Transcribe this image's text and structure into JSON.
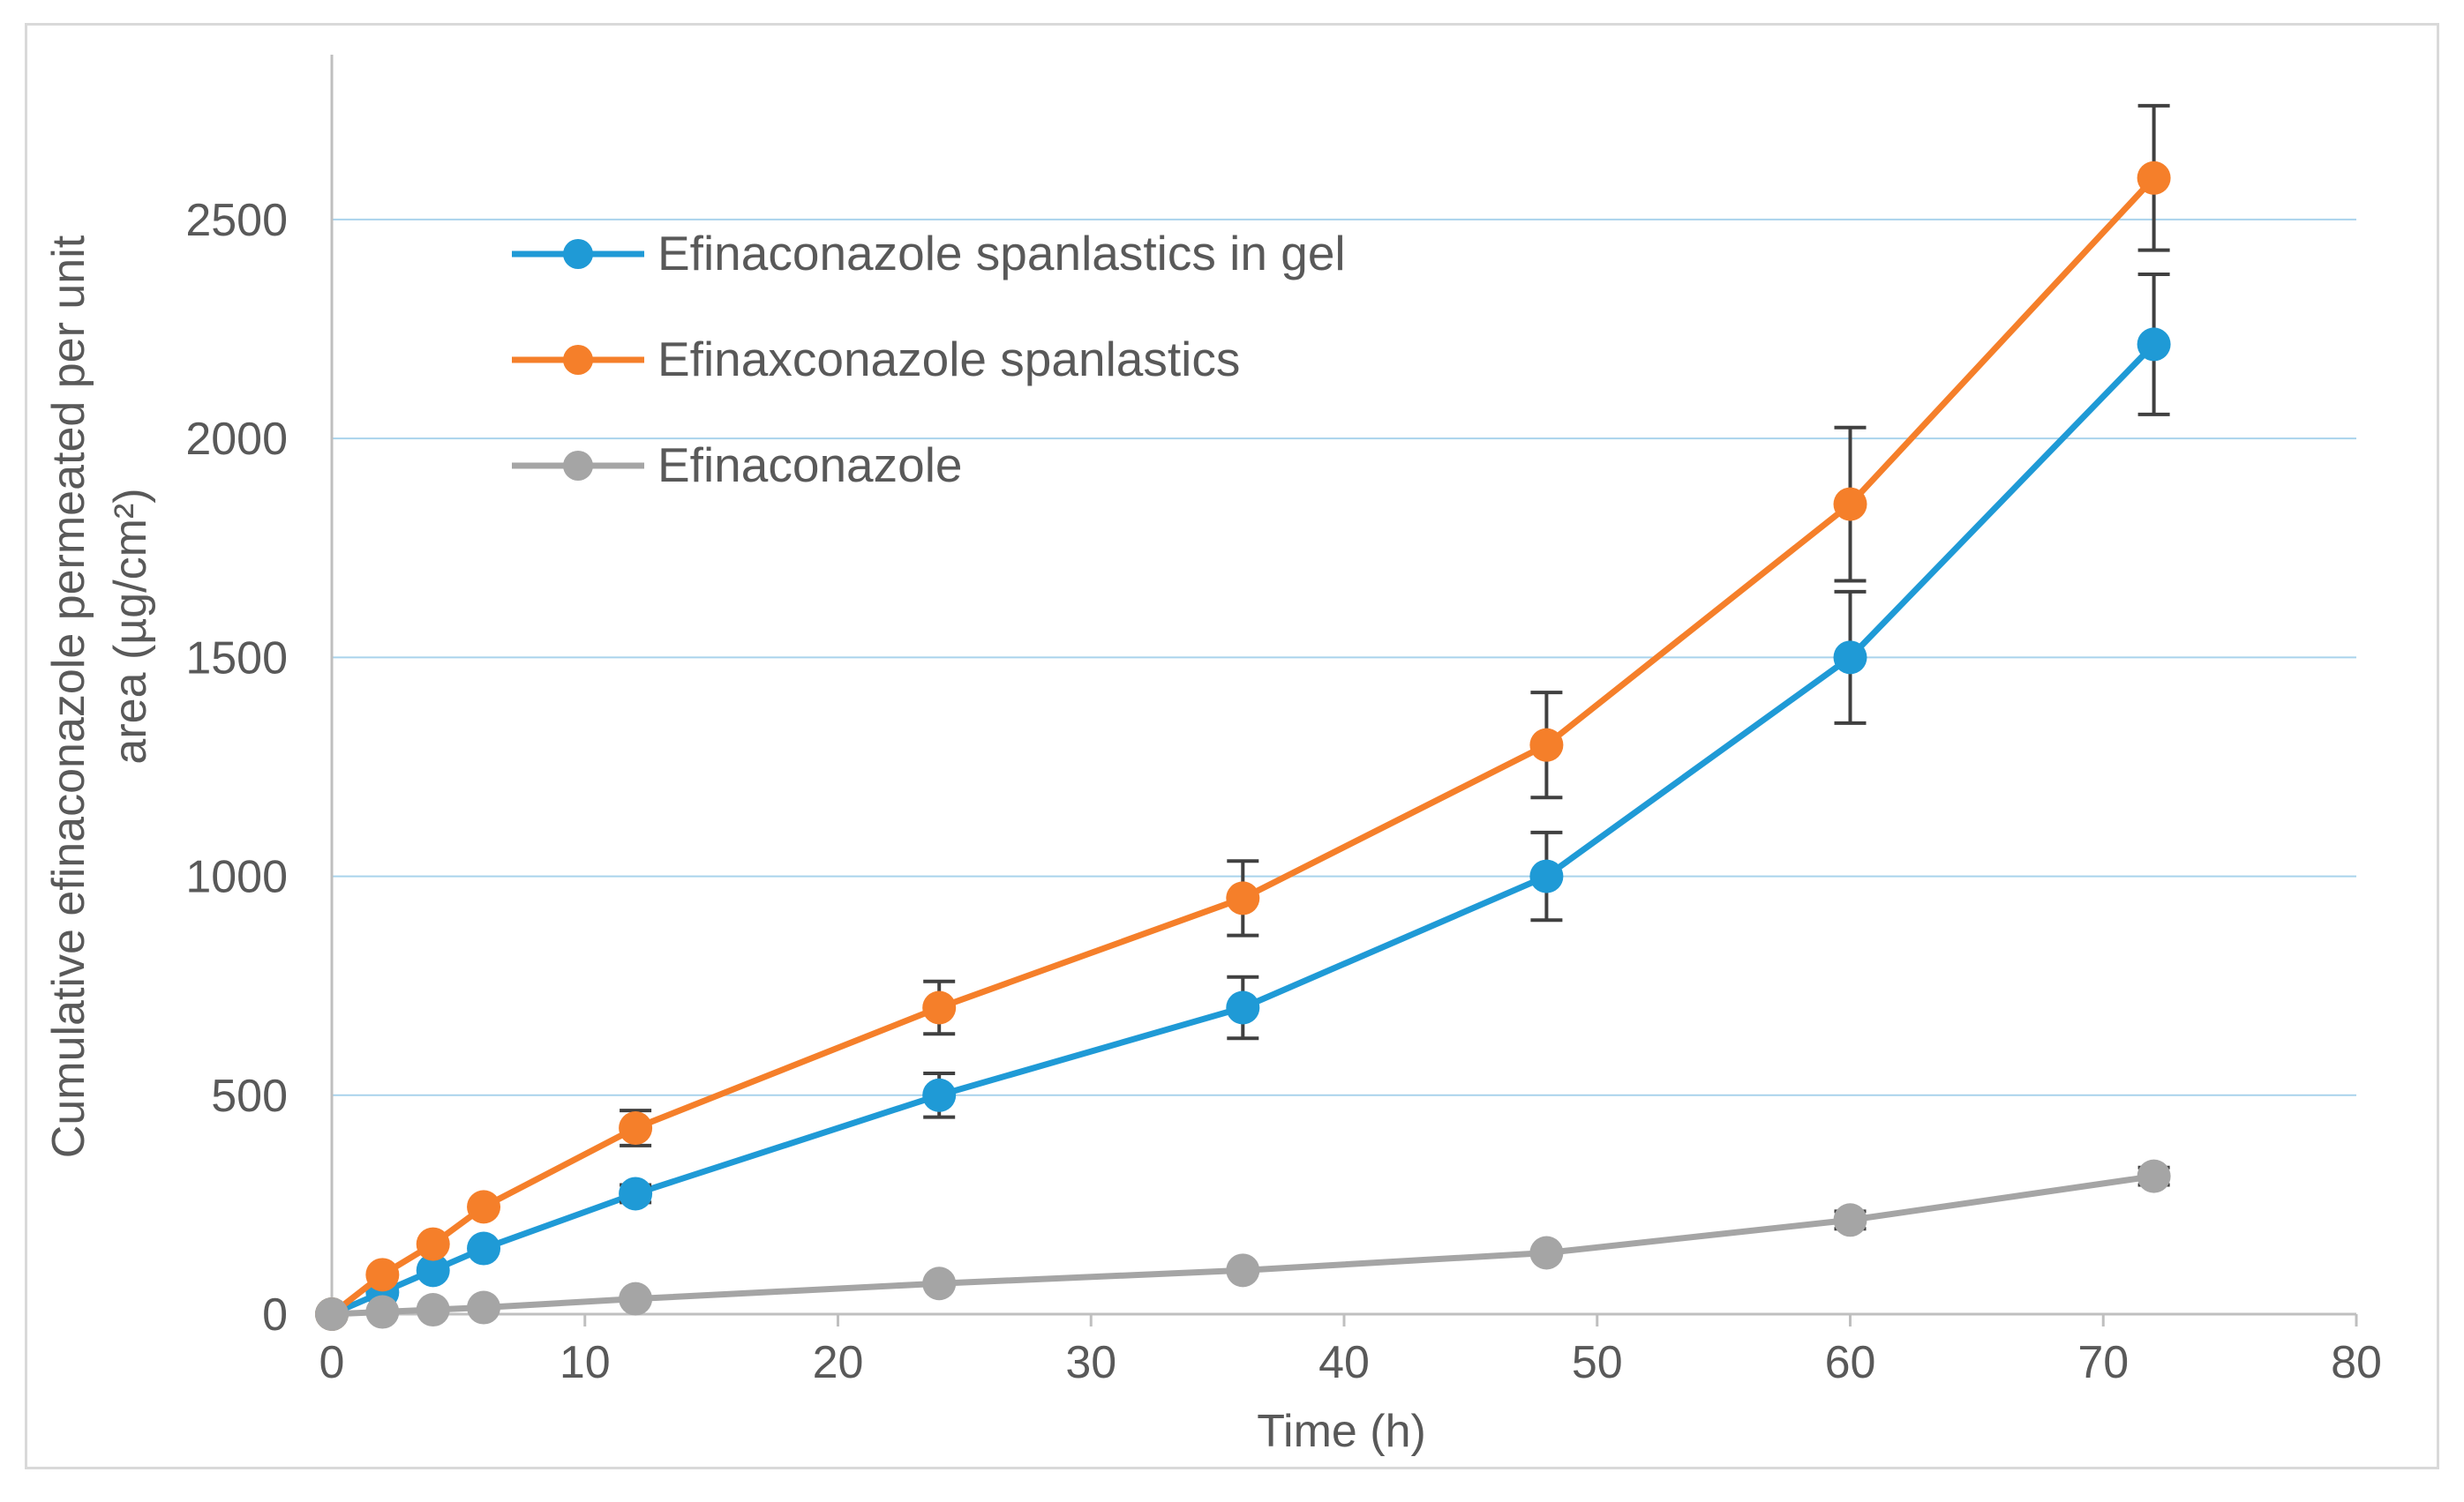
{
  "chart_data": {
    "type": "line",
    "title": "",
    "xlabel": "Time  (h)",
    "ylabel_line1": "Cumulative  efinaconazole permeated  per unit",
    "ylabel_line2": "area (µg/cm²)",
    "xlim": [
      0,
      80
    ],
    "ylim": [
      0,
      2800
    ],
    "x_ticks": [
      0,
      10,
      20,
      30,
      40,
      50,
      60,
      70,
      80
    ],
    "y_ticks": [
      0,
      500,
      1000,
      1500,
      2000,
      2500
    ],
    "grid": "horizontal",
    "legend_position": "top-left",
    "x": [
      0,
      2,
      4,
      6,
      12,
      24,
      36,
      48,
      60,
      72
    ],
    "series": [
      {
        "name": "Efinaconazole spanlastics in gel",
        "color": "#1f9ad6",
        "values": [
          0,
          50,
          100,
          150,
          275,
          500,
          700,
          1000,
          1500,
          2215
        ],
        "errors": [
          0,
          0,
          0,
          0,
          20,
          50,
          70,
          100,
          150,
          160
        ]
      },
      {
        "name": "Efinaxconazole spanlastics",
        "color": "#f57f2a",
        "values": [
          0,
          90,
          160,
          245,
          425,
          700,
          950,
          1300,
          1850,
          2595
        ],
        "errors": [
          0,
          0,
          0,
          0,
          40,
          60,
          85,
          120,
          175,
          165
        ]
      },
      {
        "name": "Efinaconazole",
        "color": "#a5a5a5",
        "values": [
          0,
          5,
          10,
          15,
          35,
          70,
          100,
          140,
          215,
          315
        ],
        "errors": [
          0,
          0,
          0,
          0,
          0,
          0,
          0,
          0,
          20,
          20
        ]
      }
    ]
  }
}
